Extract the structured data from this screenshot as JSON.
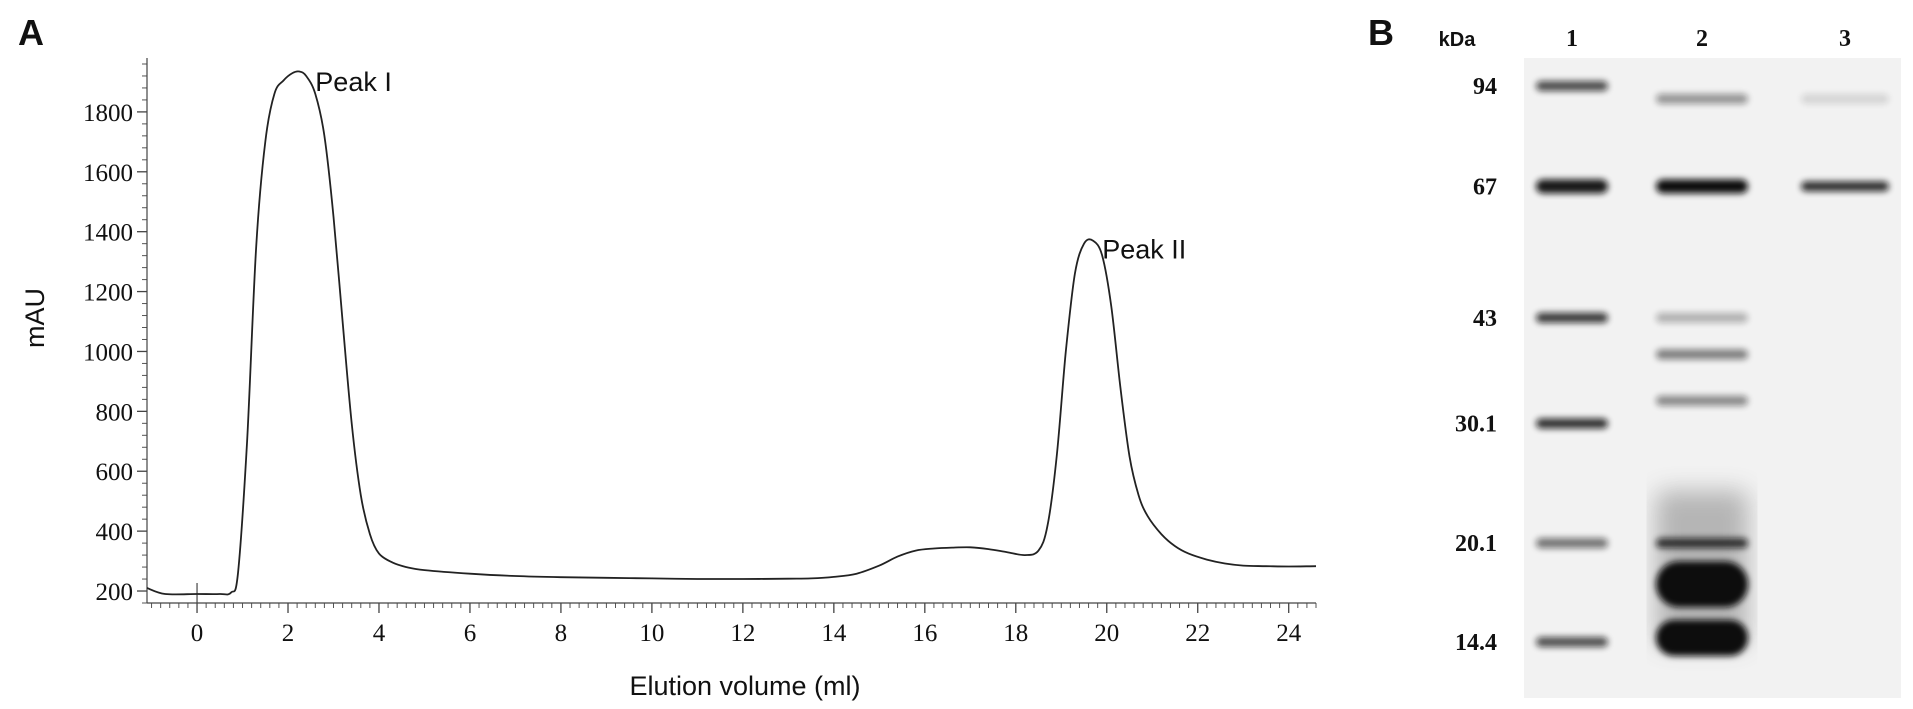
{
  "panels": {
    "a": {
      "label": "A"
    },
    "b": {
      "label": "B"
    }
  },
  "chart_data": [
    {
      "type": "line",
      "panel": "A",
      "title": "",
      "xlabel": "Elution volume (ml)",
      "ylabel": "mAU",
      "xlim": [
        -1.1,
        24.6
      ],
      "ylim": [
        160,
        1980
      ],
      "x_ticks": [
        0,
        2,
        4,
        6,
        8,
        10,
        12,
        14,
        16,
        18,
        20,
        22,
        24
      ],
      "y_ticks": [
        200,
        400,
        600,
        800,
        1000,
        1200,
        1400,
        1600,
        1800
      ],
      "grid": false,
      "line_color": "#222222",
      "series": [
        {
          "x": [
            -1.1,
            -0.7,
            0.0,
            0.5,
            0.75,
            0.9,
            1.1,
            1.3,
            1.5,
            1.7,
            1.9,
            2.1,
            2.25,
            2.4,
            2.6,
            2.8,
            3.0,
            3.2,
            3.4,
            3.6,
            3.8,
            4.0,
            4.3,
            4.6,
            5.0,
            6.0,
            7.0,
            8.0,
            9.0,
            10.0,
            11.0,
            12.0,
            13.0,
            13.5,
            14.0,
            14.5,
            15.0,
            15.4,
            15.8,
            16.2,
            16.6,
            17.0,
            17.4,
            17.8,
            18.2,
            18.5,
            18.7,
            18.9,
            19.1,
            19.3,
            19.5,
            19.7,
            19.9,
            20.1,
            20.3,
            20.5,
            20.7,
            20.9,
            21.2,
            21.5,
            21.8,
            22.2,
            22.6,
            23.0,
            23.5,
            24.0,
            24.6
          ],
          "y": [
            210,
            190,
            190,
            190,
            195,
            260,
            700,
            1350,
            1700,
            1860,
            1905,
            1930,
            1935,
            1920,
            1860,
            1720,
            1450,
            1100,
            760,
            520,
            390,
            325,
            295,
            280,
            270,
            258,
            250,
            246,
            244,
            242,
            240,
            240,
            241,
            242,
            247,
            258,
            285,
            315,
            335,
            342,
            345,
            346,
            340,
            330,
            320,
            335,
            420,
            650,
            1000,
            1260,
            1360,
            1370,
            1320,
            1150,
            880,
            650,
            520,
            450,
            390,
            350,
            325,
            305,
            292,
            285,
            283,
            282,
            283
          ]
        }
      ],
      "annotations": [
        {
          "text": "Peak I",
          "x": 2.6,
          "y": 1870
        },
        {
          "text": "Peak II",
          "x": 19.9,
          "y": 1310
        }
      ]
    }
  ],
  "gel": {
    "unit_label": "kDa",
    "lanes": [
      {
        "label": "1",
        "bands": [
          {
            "mw": 94,
            "intensity": 0.72
          },
          {
            "mw": 67,
            "intensity": 0.95
          },
          {
            "mw": 43,
            "intensity": 0.8
          },
          {
            "mw": 30.1,
            "intensity": 0.85
          },
          {
            "mw": 20.1,
            "intensity": 0.55
          },
          {
            "mw": 14.4,
            "intensity": 0.7
          }
        ]
      },
      {
        "label": "2",
        "bands": [
          {
            "mw": 94,
            "intensity": 0.4,
            "offset_kda": -4
          },
          {
            "mw": 67,
            "intensity": 1.0
          },
          {
            "mw": 43,
            "intensity": 0.28
          },
          {
            "mw": 38,
            "intensity": 0.5
          },
          {
            "mw": 32.5,
            "intensity": 0.45
          },
          {
            "mw": 20.1,
            "intensity": 0.8
          },
          {
            "mw": 17.5,
            "intensity": 1.0
          },
          {
            "mw": 14.6,
            "intensity": 1.0
          }
        ]
      },
      {
        "label": "3",
        "bands": [
          {
            "mw": 90,
            "intensity": 0.12
          },
          {
            "mw": 67,
            "intensity": 0.85
          }
        ]
      }
    ],
    "markers": [
      {
        "label": "94",
        "mw": 94
      },
      {
        "label": "67",
        "mw": 67
      },
      {
        "label": "43",
        "mw": 43
      },
      {
        "label": "30.1",
        "mw": 30.1
      },
      {
        "label": "20.1",
        "mw": 20.1
      },
      {
        "label": "14.4",
        "mw": 14.4
      }
    ],
    "band_color": "#111111",
    "background_color": "#f2f2f2"
  }
}
